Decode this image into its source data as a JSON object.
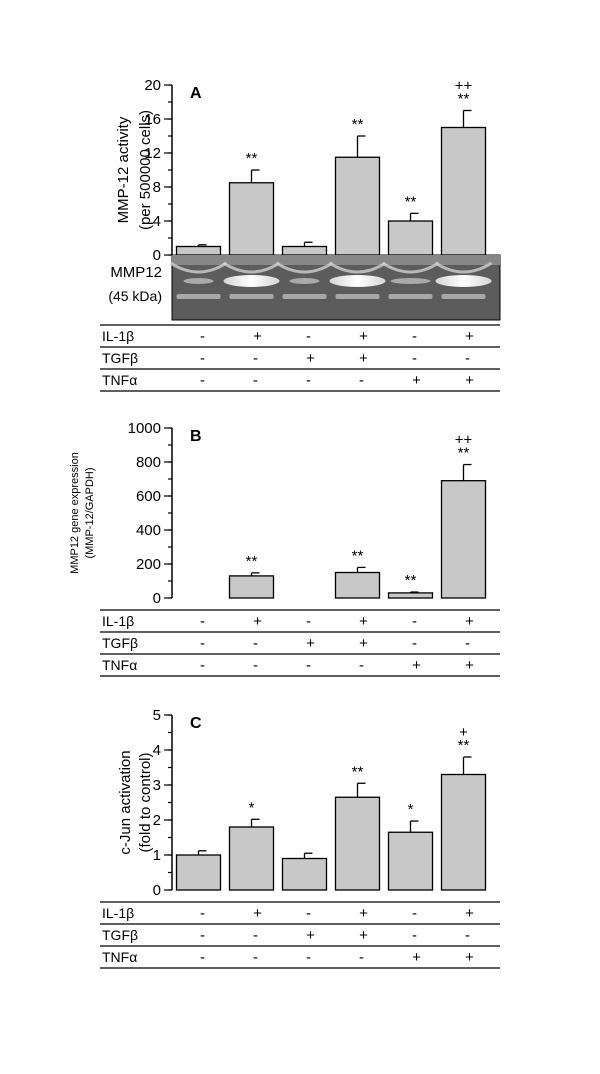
{
  "chart_data": [
    {
      "type": "bar",
      "panel_label": "A",
      "ylabel_lines": [
        "MMP-12 activity",
        "(per 500000 cells)"
      ],
      "ylim": [
        0,
        20
      ],
      "yticks": [
        "0",
        "4",
        "8",
        "12",
        "16",
        "20"
      ],
      "minor_step": 2,
      "values": [
        1.0,
        8.5,
        1.0,
        11.5,
        4.0,
        15.0
      ],
      "errors": [
        0.2,
        1.5,
        0.5,
        2.5,
        0.9,
        2.0
      ],
      "significance": [
        [],
        [
          "**"
        ],
        [],
        [
          "**"
        ],
        [
          "**"
        ],
        [
          "++",
          "**"
        ]
      ],
      "gel": {
        "label_lines": [
          "MMP12",
          "(45 kDa)"
        ]
      },
      "treatments": [
        {
          "name": "IL-1β",
          "marks": [
            "-",
            "+",
            "-",
            "+",
            "-",
            "+"
          ]
        },
        {
          "name": "TGFβ",
          "marks": [
            "-",
            "-",
            "+",
            "+",
            "-",
            "-"
          ]
        },
        {
          "name": "TNFα",
          "marks": [
            "-",
            "-",
            "-",
            "-",
            "+",
            "+"
          ]
        }
      ]
    },
    {
      "type": "bar",
      "panel_label": "B",
      "ylabel_lines": [
        "MMP12 gene expression",
        "(MMP-12/GAPDH)"
      ],
      "ylim": [
        0,
        1000
      ],
      "yticks": [
        "0",
        "200",
        "400",
        "600",
        "800",
        "1000"
      ],
      "minor_step": 100,
      "values": [
        0,
        130,
        0,
        150,
        30,
        690
      ],
      "errors": [
        0,
        18,
        0,
        30,
        5,
        95
      ],
      "significance": [
        [],
        [
          "**"
        ],
        [],
        [
          "**"
        ],
        [
          "**"
        ],
        [
          "++",
          "**"
        ]
      ],
      "treatments": [
        {
          "name": "IL-1β",
          "marks": [
            "-",
            "+",
            "-",
            "+",
            "-",
            "+"
          ]
        },
        {
          "name": "TGFβ",
          "marks": [
            "-",
            "-",
            "+",
            "+",
            "-",
            "-"
          ]
        },
        {
          "name": "TNFα",
          "marks": [
            "-",
            "-",
            "-",
            "-",
            "+",
            "+"
          ]
        }
      ]
    },
    {
      "type": "bar",
      "panel_label": "C",
      "ylabel_lines": [
        "c-Jun activation",
        "(fold to control)"
      ],
      "ylim": [
        0,
        5
      ],
      "yticks": [
        "0",
        "1",
        "2",
        "3",
        "4",
        "5"
      ],
      "minor_step": 0.5,
      "values": [
        1.0,
        1.8,
        0.9,
        2.65,
        1.65,
        3.3
      ],
      "errors": [
        0.12,
        0.22,
        0.15,
        0.4,
        0.32,
        0.5
      ],
      "significance": [
        [],
        [
          "*"
        ],
        [],
        [
          "**"
        ],
        [
          "*"
        ],
        [
          "+",
          "**"
        ]
      ],
      "treatments": [
        {
          "name": "IL-1β",
          "marks": [
            "-",
            "+",
            "-",
            "+",
            "-",
            "+"
          ]
        },
        {
          "name": "TGFβ",
          "marks": [
            "-",
            "-",
            "+",
            "+",
            "-",
            "-"
          ]
        },
        {
          "name": "TNFα",
          "marks": [
            "-",
            "-",
            "-",
            "-",
            "+",
            "+"
          ]
        }
      ]
    }
  ]
}
